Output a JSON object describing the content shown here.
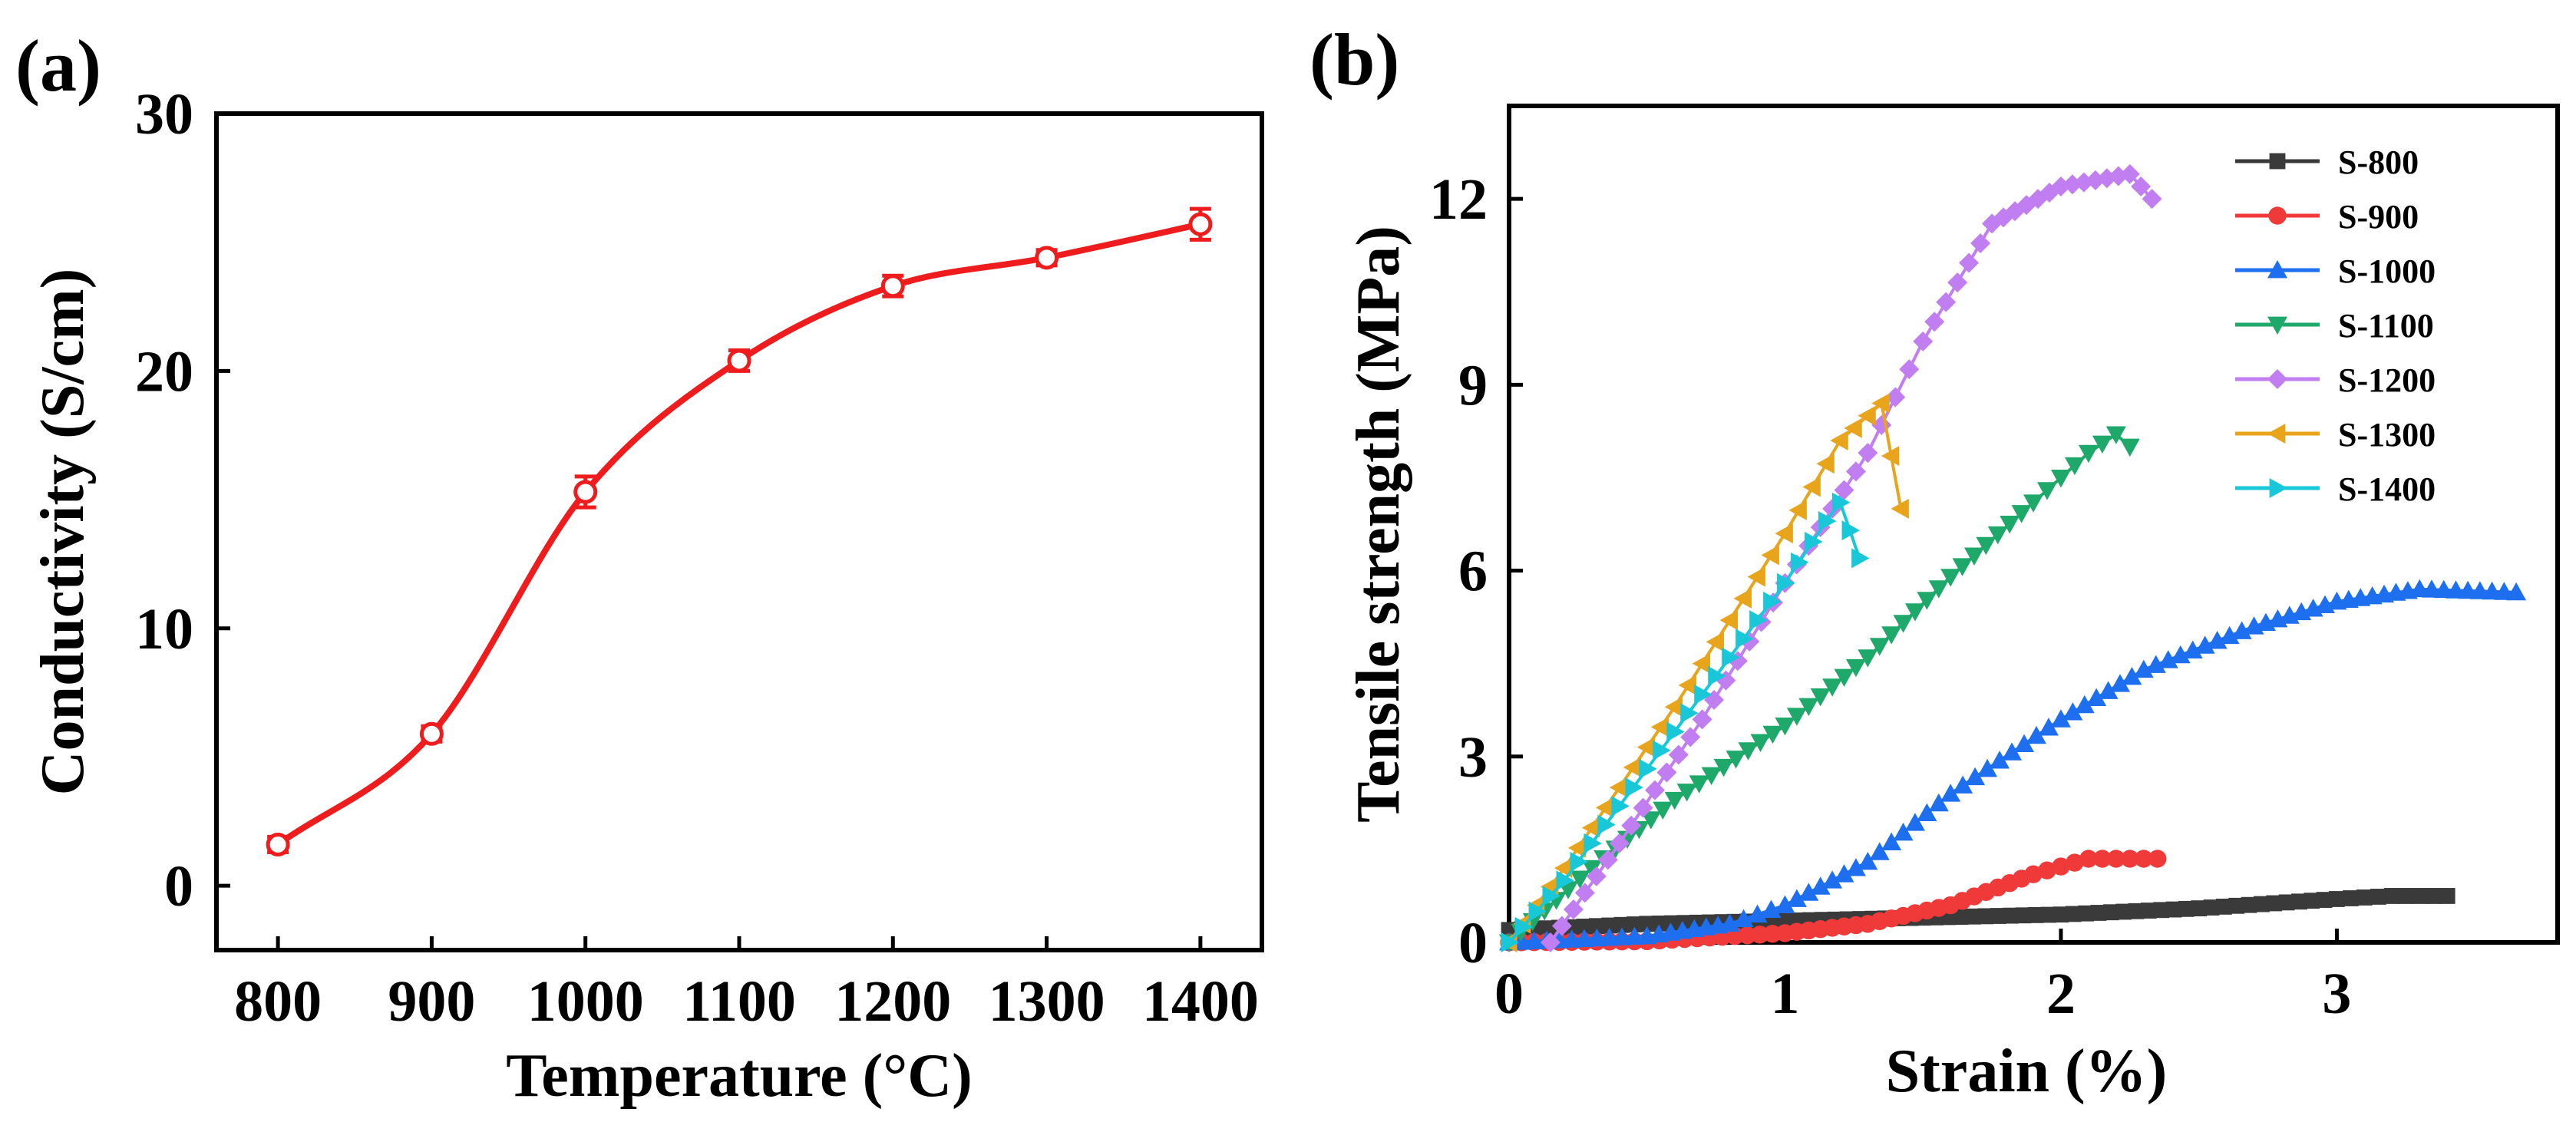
{
  "chart_data": [
    {
      "panel": "(a)",
      "type": "line",
      "xlabel": "Temperature (°C)",
      "ylabel": "Conductivity (S/cm)",
      "xlim": [
        760,
        1440
      ],
      "ylim": [
        -2.5,
        30
      ],
      "x_ticks": [
        "800",
        "900",
        "1000",
        "1100",
        "1200",
        "1300",
        "1400"
      ],
      "y_ticks": [
        "0",
        "10",
        "20",
        "30"
      ],
      "color": "#ee1c1c",
      "series": [
        {
          "name": "Conductivity",
          "x": [
            800,
            900,
            1000,
            1100,
            1200,
            1300,
            1400
          ],
          "y": [
            1.6,
            5.9,
            15.3,
            20.4,
            23.3,
            24.4,
            25.7
          ],
          "err": [
            0.3,
            0.3,
            0.6,
            0.4,
            0.4,
            0.3,
            0.6
          ]
        }
      ]
    },
    {
      "panel": "(b)",
      "type": "line",
      "xlabel": "Strain (%)",
      "ylabel": "Tensile strength (MPa)",
      "xlim": [
        0,
        3.8
      ],
      "ylim": [
        0,
        13.5
      ],
      "x_ticks": [
        "0",
        "1",
        "2",
        "3"
      ],
      "y_ticks": [
        "0",
        "3",
        "6",
        "9",
        "12"
      ],
      "legend_position": "top-right",
      "series": [
        {
          "name": "S-800",
          "color": "#3a3a3a",
          "marker": "square",
          "x": [
            0,
            0.5,
            1.0,
            1.5,
            2.0,
            2.5,
            3.0,
            3.2,
            3.4
          ],
          "y": [
            0.2,
            0.3,
            0.35,
            0.4,
            0.45,
            0.55,
            0.7,
            0.75,
            0.75
          ]
        },
        {
          "name": "S-900",
          "color": "#f03a3a",
          "marker": "circle",
          "x": [
            0,
            0.5,
            1.0,
            1.3,
            1.6,
            1.9,
            2.1,
            2.2,
            2.35
          ],
          "y": [
            0,
            0.02,
            0.15,
            0.3,
            0.6,
            1.1,
            1.35,
            1.35,
            1.35
          ]
        },
        {
          "name": "S-1000",
          "color": "#1e6ff0",
          "marker": "triangle-up",
          "x": [
            0,
            0.5,
            0.8,
            1.0,
            1.3,
            1.6,
            2.0,
            2.3,
            2.7,
            3.0,
            3.3,
            3.65
          ],
          "y": [
            0,
            0.1,
            0.3,
            0.6,
            1.3,
            2.4,
            3.6,
            4.4,
            5.1,
            5.5,
            5.7,
            5.65
          ]
        },
        {
          "name": "S-1100",
          "color": "#1ea86a",
          "marker": "triangle-down",
          "x": [
            0,
            0.3,
            0.6,
            1.0,
            1.3,
            1.6,
            1.9,
            2.1,
            2.2,
            2.25
          ],
          "y": [
            0,
            1.2,
            2.3,
            3.5,
            4.6,
            5.9,
            7.1,
            7.9,
            8.2,
            8.0
          ]
        },
        {
          "name": "S-1200",
          "color": "#c07ef0",
          "marker": "diamond",
          "x": [
            0.15,
            0.4,
            0.7,
            1.0,
            1.3,
            1.5,
            1.75,
            2.0,
            2.25,
            2.33
          ],
          "y": [
            0,
            1.6,
            3.6,
            5.8,
            7.9,
            9.7,
            11.6,
            12.2,
            12.4,
            12.0
          ]
        },
        {
          "name": "S-1300",
          "color": "#e8a41a",
          "marker": "triangle-left",
          "x": [
            0,
            0.2,
            0.4,
            0.6,
            0.8,
            1.0,
            1.2,
            1.35,
            1.42
          ],
          "y": [
            0,
            1.2,
            2.5,
            3.8,
            5.2,
            6.6,
            8.1,
            8.7,
            7.0
          ]
        },
        {
          "name": "S-1400",
          "color": "#18c8d8",
          "marker": "triangle-right",
          "x": [
            0,
            0.2,
            0.4,
            0.6,
            0.8,
            1.0,
            1.15,
            1.2,
            1.27
          ],
          "y": [
            0,
            1.0,
            2.2,
            3.4,
            4.6,
            5.8,
            6.8,
            7.1,
            6.2
          ]
        }
      ]
    }
  ]
}
